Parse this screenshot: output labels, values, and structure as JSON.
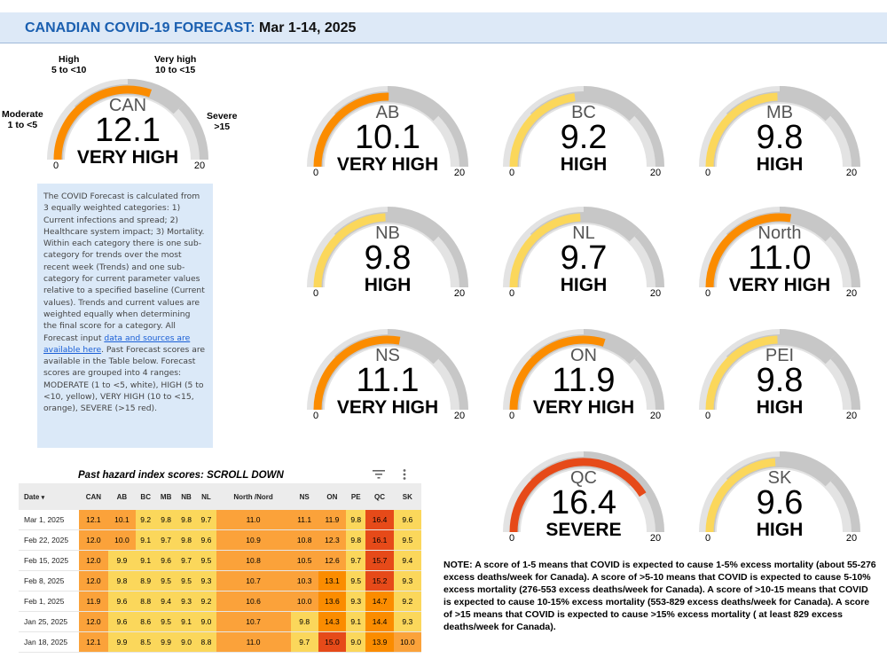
{
  "header": {
    "title": "CANADIAN COVID-19 FORECAST:",
    "date": "Mar 1-14, 2025"
  },
  "colors": {
    "moderate": "#ffffff",
    "high": "#fbd75b",
    "very_high": "#fb8c00",
    "severe": "#e64a19",
    "track": "#e3e3e3",
    "band": "#bdbdbd"
  },
  "range_labels": {
    "moderate": [
      "Moderate",
      "1 to <5"
    ],
    "high": [
      "High",
      "5 to <10"
    ],
    "very_high": [
      "Very high",
      "10 to <15"
    ],
    "severe": [
      "Severe",
      ">15"
    ]
  },
  "chart_data": [
    {
      "type": "gauge",
      "min": 0,
      "max": 20,
      "min_label": "0",
      "max_label": "20",
      "gauges": [
        {
          "region": "CAN",
          "value": 12.1,
          "value_label": "12.1",
          "category": "VERY HIGH"
        },
        {
          "region": "AB",
          "value": 10.1,
          "value_label": "10.1",
          "category": "VERY HIGH"
        },
        {
          "region": "BC",
          "value": 9.2,
          "value_label": "9.2",
          "category": "HIGH"
        },
        {
          "region": "MB",
          "value": 9.8,
          "value_label": "9.8",
          "category": "HIGH"
        },
        {
          "region": "NB",
          "value": 9.8,
          "value_label": "9.8",
          "category": "HIGH"
        },
        {
          "region": "NL",
          "value": 9.7,
          "value_label": "9.7",
          "category": "HIGH"
        },
        {
          "region": "North",
          "value": 11.0,
          "value_label": "11.0",
          "category": "VERY HIGH"
        },
        {
          "region": "NS",
          "value": 11.1,
          "value_label": "11.1",
          "category": "VERY HIGH"
        },
        {
          "region": "ON",
          "value": 11.9,
          "value_label": "11.9",
          "category": "VERY HIGH"
        },
        {
          "region": "PEI",
          "value": 9.8,
          "value_label": "9.8",
          "category": "HIGH"
        },
        {
          "region": "QC",
          "value": 16.4,
          "value_label": "16.4",
          "category": "SEVERE"
        },
        {
          "region": "SK",
          "value": 9.6,
          "value_label": "9.6",
          "category": "HIGH"
        }
      ]
    },
    {
      "type": "table",
      "title": "Past hazard index scores: SCROLL DOWN",
      "date_header": "Date",
      "columns": [
        "CAN",
        "AB",
        "BC",
        "MB",
        "NB",
        "NL",
        "North /Nord",
        "NS",
        "ON",
        "PE",
        "QC",
        "SK"
      ],
      "rows": [
        {
          "date": "Mar 1, 2025",
          "values": [
            "12.1",
            "10.1",
            "9.2",
            "9.8",
            "9.8",
            "9.7",
            "11.0",
            "11.1",
            "11.9",
            "9.8",
            "16.4",
            "9.6"
          ]
        },
        {
          "date": "Feb 22, 2025",
          "values": [
            "12.0",
            "10.0",
            "9.1",
            "9.7",
            "9.8",
            "9.6",
            "10.9",
            "10.8",
            "12.3",
            "9.8",
            "16.1",
            "9.5"
          ]
        },
        {
          "date": "Feb 15, 2025",
          "values": [
            "12.0",
            "9.9",
            "9.1",
            "9.6",
            "9.7",
            "9.5",
            "10.8",
            "10.5",
            "12.6",
            "9.7",
            "15.7",
            "9.4"
          ]
        },
        {
          "date": "Feb 8, 2025",
          "values": [
            "12.0",
            "9.8",
            "8.9",
            "9.5",
            "9.5",
            "9.3",
            "10.7",
            "10.3",
            "13.1",
            "9.5",
            "15.2",
            "9.3"
          ]
        },
        {
          "date": "Feb 1, 2025",
          "values": [
            "11.9",
            "9.6",
            "8.8",
            "9.4",
            "9.3",
            "9.2",
            "10.6",
            "10.0",
            "13.6",
            "9.3",
            "14.7",
            "9.2"
          ]
        },
        {
          "date": "Jan 25, 2025",
          "values": [
            "12.0",
            "9.6",
            "8.6",
            "9.5",
            "9.1",
            "9.0",
            "10.7",
            "9.8",
            "14.3",
            "9.1",
            "14.4",
            "9.3"
          ]
        },
        {
          "date": "Jan 18, 2025",
          "values": [
            "12.1",
            "9.9",
            "8.5",
            "9.9",
            "9.0",
            "8.8",
            "11.0",
            "9.7",
            "15.0",
            "9.0",
            "13.9",
            "10.0"
          ]
        }
      ]
    }
  ],
  "info": {
    "text1": "The COVID Forecast is calculated from 3 equally weighted categories: 1) Current infections and spread; 2) Healthcare system impact; 3) Mortality. Within each category there is one sub-category for trends over the most recent week (Trends) and one sub-category for current parameter values relative to a specified baseline (Current values). Trends and current values are weighted equally when determining the final score for a category. All Forecast input ",
    "link": "data and sources are available here",
    "text2": ". Past Forecast scores are available in the Table below. Forecast scores are grouped into 4 ranges: MODERATE (1 to <5, white), HIGH (5 to <10, yellow), VERY HIGH (10 to <15, orange), SEVERE (>15 red)."
  },
  "note": "NOTE: A score of 1-5 means that COVID is expected to cause 1-5% excess mortality (about 55-276 excess deaths/week for Canada). A score of >5-10 means that COVID is expected to cause 5-10% excess mortality (276-553 excess deaths/week for Canada). A score of >10-15 means that COVID is expected to cause 10-15% excess mortality (553-829 excess deaths/week for Canada). A score of >15 means that COVID is expected to cause >15% excess mortality ( at least 829 excess deaths/week for Canada).",
  "icons": {
    "filter": "filter-icon",
    "menu": "more-vert-icon",
    "sort": "sort-arrow-icon"
  }
}
